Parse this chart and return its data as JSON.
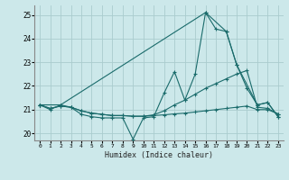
{
  "xlabel": "Humidex (Indice chaleur)",
  "bg_color": "#cce8ea",
  "grid_color": "#aaccce",
  "line_color": "#1a6b6b",
  "xlim": [
    -0.5,
    23.5
  ],
  "ylim": [
    19.7,
    25.4
  ],
  "yticks": [
    20,
    21,
    22,
    23,
    24,
    25
  ],
  "xticks": [
    0,
    1,
    2,
    3,
    4,
    5,
    6,
    7,
    8,
    9,
    10,
    11,
    12,
    13,
    14,
    15,
    16,
    17,
    18,
    19,
    20,
    21,
    22,
    23
  ],
  "line1_x": [
    0,
    1,
    2,
    3,
    4,
    5,
    6,
    7,
    8,
    9,
    10,
    11,
    12,
    13,
    14,
    15,
    16,
    17,
    18,
    19,
    20,
    21,
    22,
    23
  ],
  "line1_y": [
    21.2,
    21.0,
    21.2,
    21.1,
    20.8,
    20.7,
    20.65,
    20.65,
    20.65,
    19.75,
    20.65,
    20.7,
    21.7,
    22.6,
    21.4,
    22.5,
    25.1,
    24.4,
    24.3,
    22.9,
    21.9,
    21.2,
    21.3,
    20.7
  ],
  "line2_x": [
    0,
    1,
    2,
    3,
    4,
    5,
    6,
    7,
    8,
    9,
    10,
    11,
    12,
    13,
    14,
    15,
    16,
    17,
    18,
    19,
    20,
    21,
    22,
    23
  ],
  "line2_y": [
    21.2,
    21.05,
    21.15,
    21.1,
    20.95,
    20.85,
    20.8,
    20.75,
    20.75,
    20.72,
    20.72,
    20.78,
    20.95,
    21.2,
    21.4,
    21.65,
    21.9,
    22.1,
    22.3,
    22.5,
    22.65,
    21.1,
    21.05,
    20.82
  ],
  "line3_x": [
    0,
    1,
    2,
    3,
    4,
    5,
    6,
    7,
    8,
    9,
    10,
    11,
    12,
    13,
    14,
    15,
    16,
    17,
    18,
    19,
    20,
    21,
    22,
    23
  ],
  "line3_y": [
    21.2,
    21.05,
    21.15,
    21.1,
    20.95,
    20.85,
    20.8,
    20.75,
    20.75,
    20.72,
    20.72,
    20.75,
    20.78,
    20.82,
    20.85,
    20.9,
    20.95,
    21.0,
    21.05,
    21.1,
    21.15,
    21.0,
    21.0,
    20.82
  ],
  "line4_x": [
    0,
    2,
    16,
    18,
    19,
    21,
    22,
    23
  ],
  "line4_y": [
    21.2,
    21.2,
    25.1,
    24.3,
    22.9,
    21.2,
    21.3,
    20.7
  ]
}
